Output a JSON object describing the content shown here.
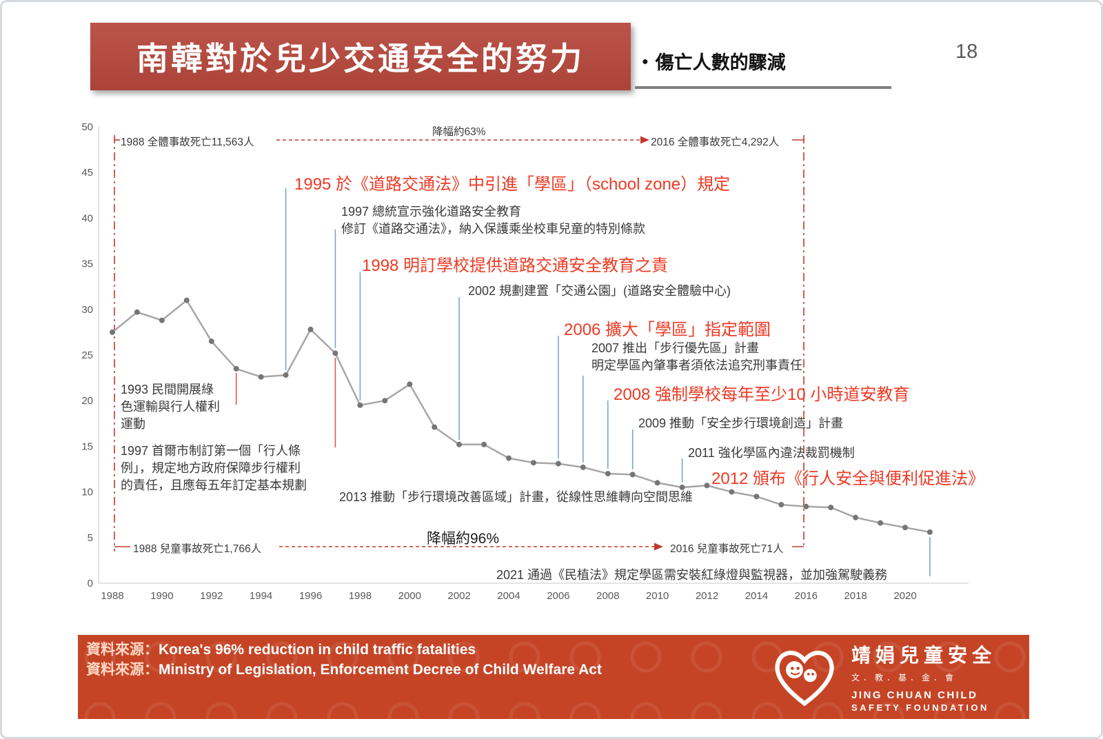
{
  "page": {
    "number": "18"
  },
  "header": {
    "title": "南韓對於兒少交通安全的努力",
    "bullet": "●",
    "subtitle": "傷亡人數的驟減"
  },
  "colors": {
    "banner_red": "#ac4339",
    "banner_red_light": "#bb544a",
    "accent_red": "#ee3a24",
    "footer_red": "#c54426",
    "arrow_red": "#c0392b",
    "leader_blue": "#7ca6c9",
    "text_dark": "#3a3a3a"
  },
  "chart_data": {
    "type": "line",
    "x": [
      1988,
      1989,
      1990,
      1991,
      1992,
      1993,
      1994,
      1995,
      1996,
      1997,
      1998,
      1999,
      2000,
      2001,
      2002,
      2003,
      2004,
      2005,
      2006,
      2007,
      2008,
      2009,
      2010,
      2011,
      2012,
      2013,
      2014,
      2015,
      2016,
      2017,
      2018,
      2019,
      2020,
      2021
    ],
    "values": [
      27.5,
      29.7,
      28.8,
      31,
      26.5,
      23.5,
      22.6,
      22.8,
      27.8,
      25.2,
      19.5,
      20,
      21.8,
      17.1,
      15.2,
      15.2,
      13.7,
      13.2,
      13.1,
      12.7,
      12,
      11.9,
      11,
      10.5,
      10.7,
      10,
      9.5,
      8.6,
      8.4,
      8.3,
      7.2,
      6.6,
      6.1,
      5.6
    ],
    "ylim": [
      0,
      50
    ],
    "y_ticks": [
      0,
      5,
      10,
      15,
      20,
      25,
      30,
      35,
      40,
      45,
      50
    ],
    "x_ticks": [
      1988,
      1990,
      1992,
      1994,
      1996,
      1998,
      2000,
      2002,
      2004,
      2006,
      2008,
      2010,
      2012,
      2014,
      2016,
      2018,
      2020
    ],
    "grid": false,
    "legend": false,
    "line_color": "#a6a6a6",
    "marker_color": "#767676"
  },
  "annotations": {
    "total_1988": "1988 全體事故死亡11,563人",
    "total_drop": "降幅約63%",
    "total_2016": "2016 全體事故死亡4,292人",
    "y1995": "1995 於《道路交通法》中引進「學區」（school zone）規定",
    "y1997_line1": "1997 總統宣示強化道路安全教育",
    "y1997_line2": "修訂《道路交通法》，納入保護乘坐校車兒童的特別條款",
    "y1998": "1998 明訂學校提供道路交通安全教育之責",
    "y2002": "2002 規劃建置「交通公園」(道路安全體驗中心)",
    "y2006": "2006 擴大「學區」指定範圍",
    "y2007_line1": "2007 推出「步行優先區」計畫",
    "y2007_line2": "明定學區內肇事者須依法追究刑事責任",
    "y2008": "2008 強制學校每年至少10 小時道安教育",
    "y2009": "2009 推動「安全步行環境創造」計畫",
    "y2011": "2011 強化學區內違法裁罰機制",
    "y2012": "2012 頒布《行人安全與便利促進法》",
    "y2013": "2013 推動「步行環境改善區域」計畫，從線性思維轉向空間思維",
    "y2021": "2021 通過《民植法》規定學區需安裝紅綠燈與監視器，並加強駕駛義務",
    "y1993_line1": "1993 民間開展綠",
    "y1993_line2": "色運輸與行人權利",
    "y1993_line3": "運動",
    "y1997s_line1": "1997 首爾市制訂第一個「行人條",
    "y1997s_line2": "例」，規定地方政府保障步行權利",
    "y1997s_line3": "的責任，且應每五年訂定基本規劃",
    "child_1988": "1988 兒童事故死亡1,766人",
    "child_drop": "降幅約96%",
    "child_2016": "2016 兒童事故死亡71人"
  },
  "footer": {
    "source_label": "資料來源：",
    "source_1": "Korea's 96% reduction in child traffic fatalities",
    "source_2": "Ministry of Legislation, Enforcement Decree of Child Welfare Act",
    "logo": {
      "zh_name": "靖娟兒童安全",
      "zh_sub": "文．教．基．金．會",
      "en_line1": "JING CHUAN CHILD",
      "en_line2": "SAFETY FOUNDATION"
    }
  }
}
